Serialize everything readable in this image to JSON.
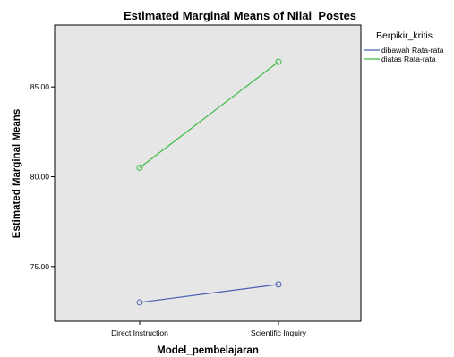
{
  "chart_data": {
    "type": "line",
    "title": "Estimated Marginal Means of Nilai_Postes",
    "xlabel": "Model_pembelajaran",
    "ylabel": "Estimated Marginal Means",
    "categories": [
      "Direct Instruction",
      "Scientific Inquiry"
    ],
    "ylim": [
      71.95,
      88.45
    ],
    "yticks": [
      75,
      80,
      85
    ],
    "ytick_labels": [
      "75.00",
      "80.00",
      "85.00"
    ],
    "grid": false,
    "legend": {
      "title": "Berpikir_kritis",
      "placement": "right"
    },
    "series": [
      {
        "name": "dibawah Rata-rata",
        "color": "#4a5fb4",
        "values": [
          73.0,
          74.0
        ]
      },
      {
        "name": "diatas Rata-rata",
        "color": "#3dbb45",
        "values": [
          80.5,
          86.4
        ]
      }
    ]
  },
  "colors": {
    "plot_background": "#e6e6e6",
    "frame": "#000000"
  }
}
